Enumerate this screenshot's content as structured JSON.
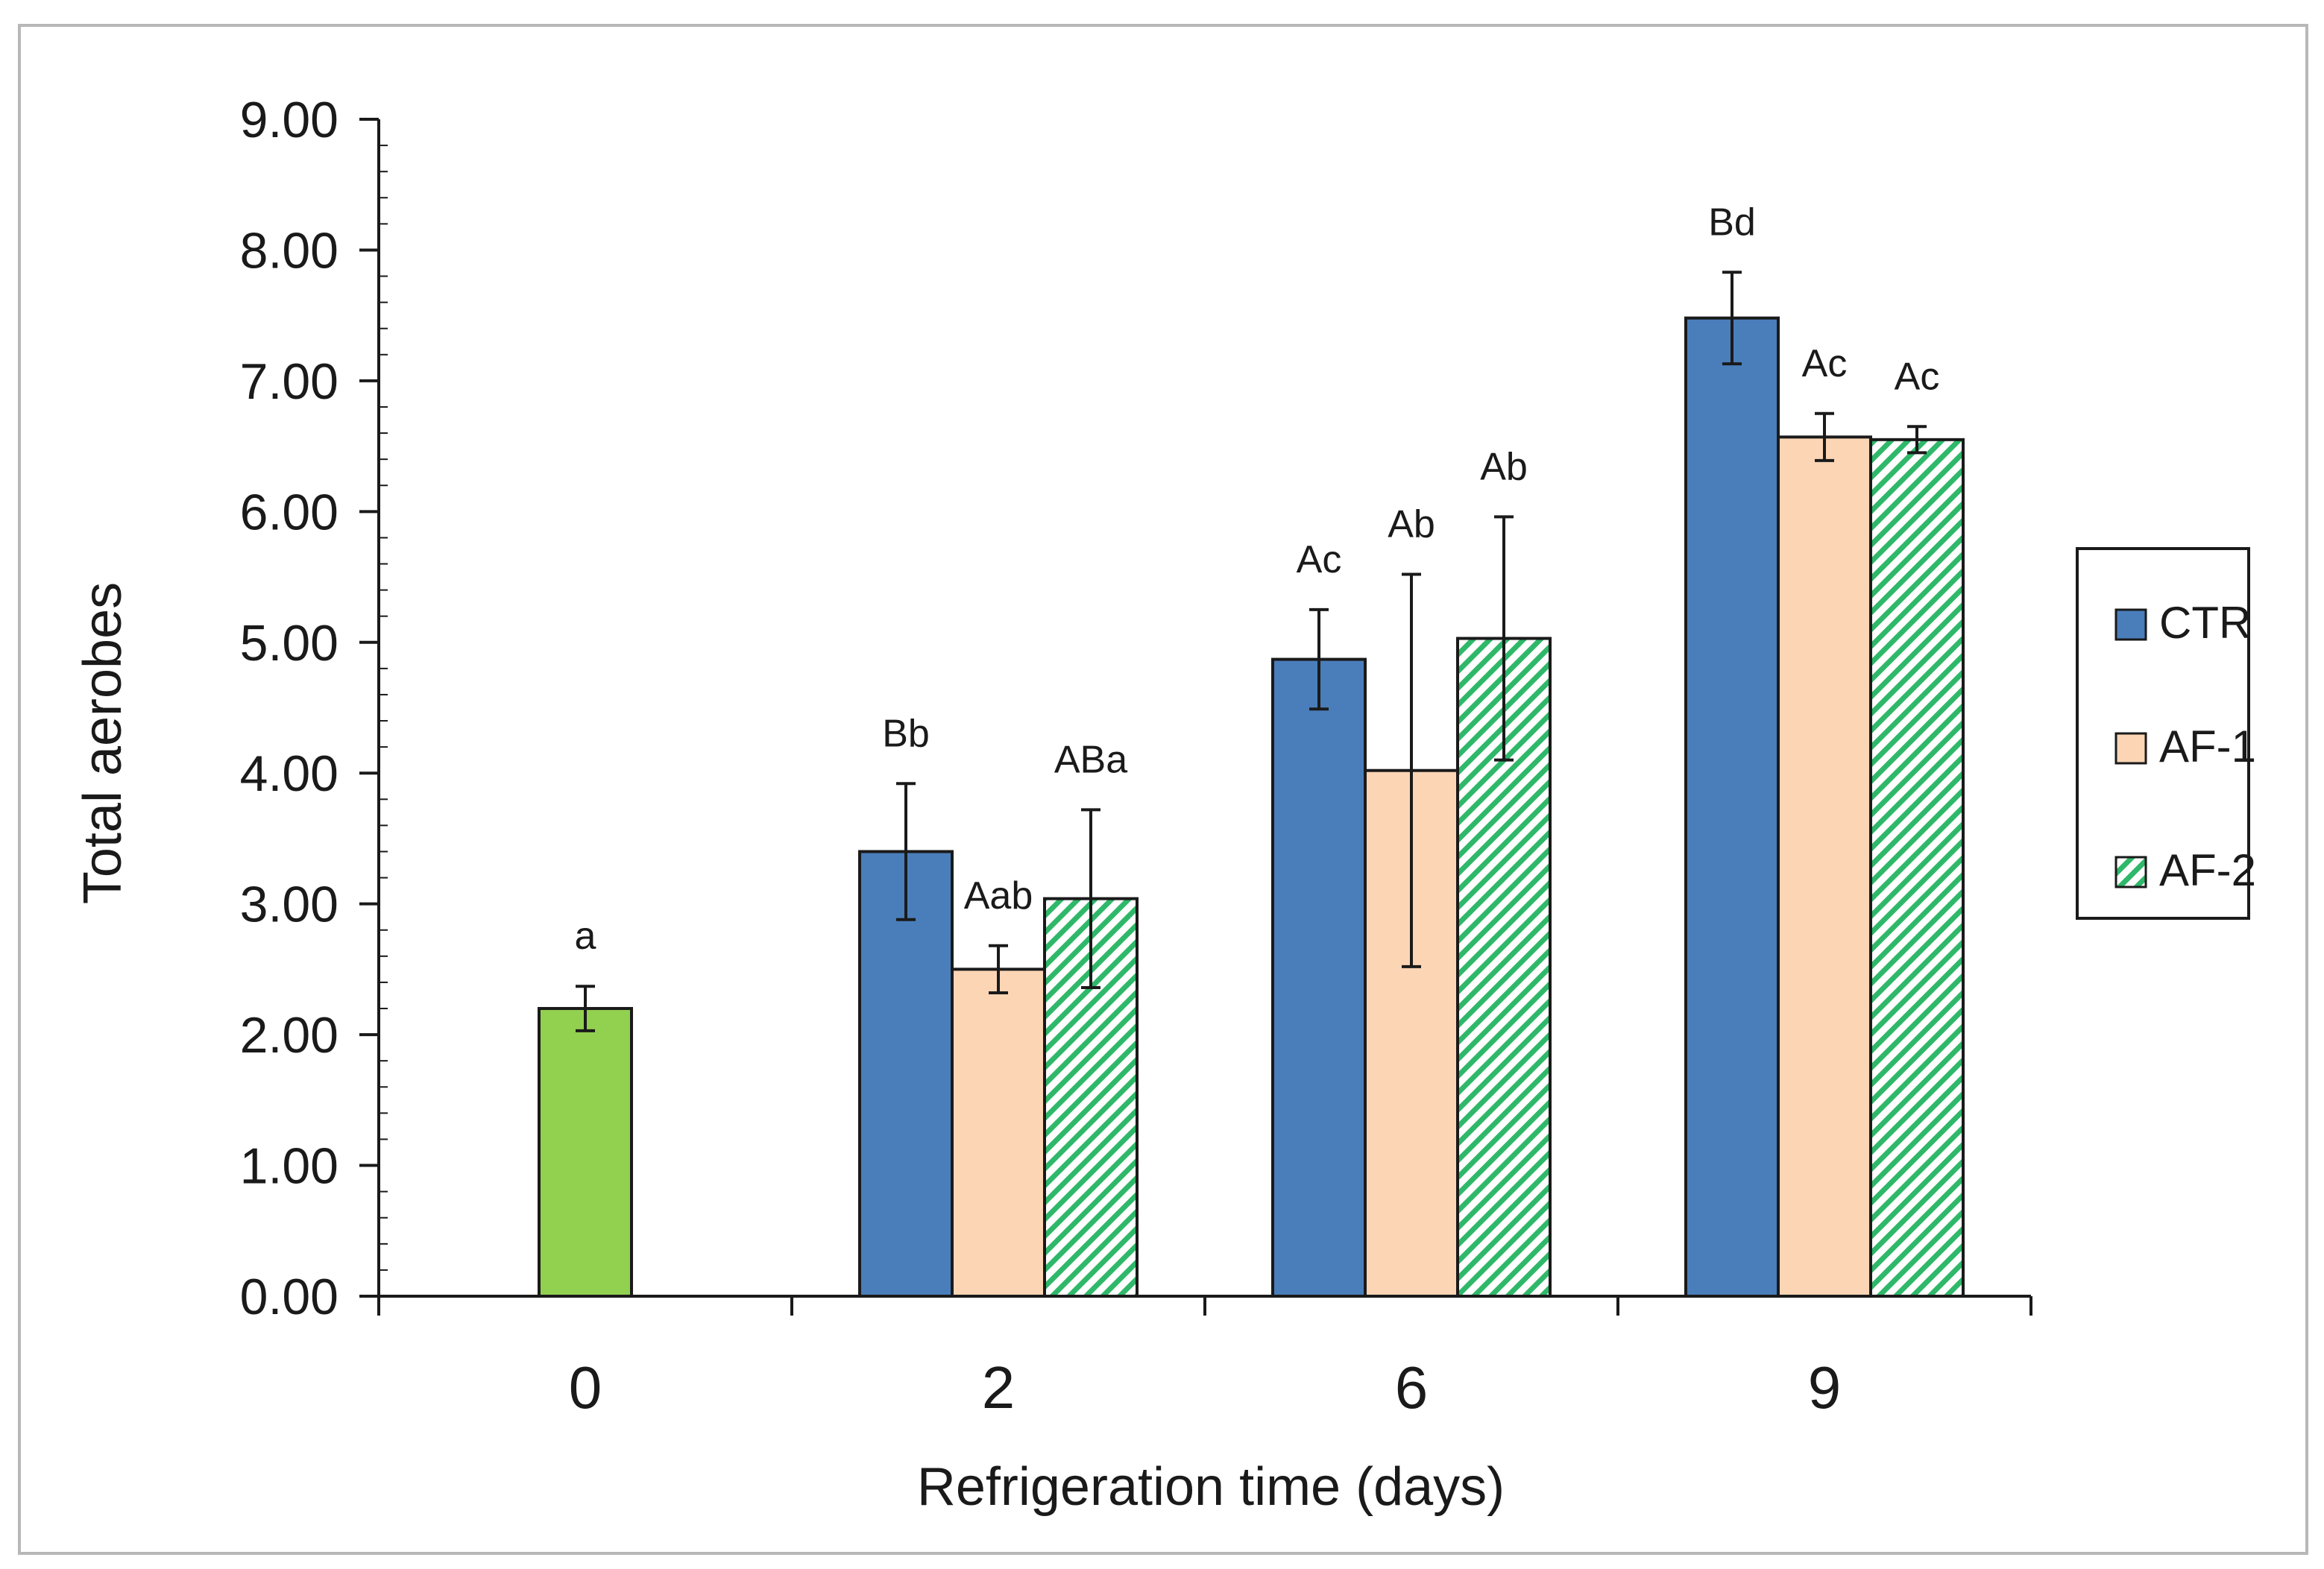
{
  "chart_data": {
    "type": "bar",
    "title": "",
    "xlabel": "Refrigeration time (days)",
    "ylabel": "Total aerobes",
    "ylim": [
      0,
      9
    ],
    "y_ticks": [
      "0.00",
      "1.00",
      "2.00",
      "3.00",
      "4.00",
      "5.00",
      "6.00",
      "7.00",
      "8.00",
      "9.00"
    ],
    "categories": [
      "0",
      "2",
      "6",
      "9"
    ],
    "baseline_day0": {
      "category": "0",
      "value": 2.2,
      "error": 0.17,
      "label": "a",
      "color": "#92d050"
    },
    "series": [
      {
        "name": "CTR",
        "color": "#4a7ebb",
        "pattern": "solid",
        "values": [
          null,
          3.4,
          4.87,
          7.48
        ],
        "errors": [
          null,
          0.52,
          0.38,
          0.35
        ],
        "labels": [
          "",
          "Bb",
          "Ac",
          "Bd"
        ]
      },
      {
        "name": "AF-1",
        "color": "#fcd5b5",
        "pattern": "solid",
        "values": [
          null,
          2.5,
          4.02,
          6.57
        ],
        "errors": [
          null,
          0.18,
          1.5,
          0.18
        ],
        "labels": [
          "",
          "Aab",
          "Ab",
          "Ac"
        ]
      },
      {
        "name": "AF-2",
        "color": "#2fb86a",
        "pattern": "diagonal-hatch",
        "values": [
          null,
          3.04,
          5.03,
          6.55
        ],
        "errors": [
          null,
          0.68,
          0.93,
          0.1
        ],
        "labels": [
          "",
          "ABa",
          "Ab",
          "Ac"
        ]
      }
    ],
    "legend": {
      "position": "right",
      "entries": [
        "CTR",
        "AF-1",
        "AF-2"
      ]
    },
    "grid": false
  }
}
